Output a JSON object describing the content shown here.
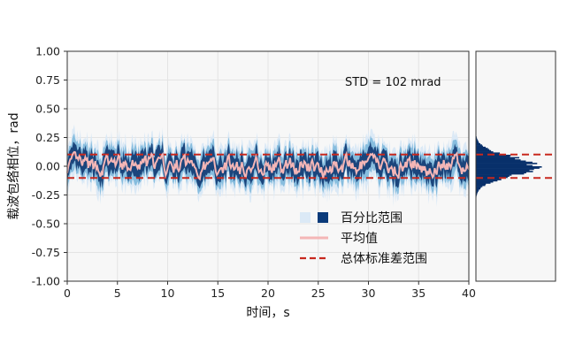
{
  "chart_data": {
    "type": "line",
    "main": {
      "xlabel": "时间，s",
      "ylabel": "载波包络相位，rad",
      "xlim": [
        0,
        40
      ],
      "ylim": [
        -1.0,
        1.0
      ],
      "xticks": [
        0,
        5,
        10,
        15,
        20,
        25,
        30,
        35,
        40
      ],
      "yticks": [
        1.0,
        0.75,
        0.5,
        0.25,
        0.0,
        -0.25,
        -0.5,
        -0.75,
        -1.0
      ],
      "ytick_labels": [
        "1.00",
        "0.75",
        "0.50",
        "0.25",
        "0.00",
        "-0.25",
        "-0.50",
        "-0.75",
        "-1.00"
      ],
      "grid": true,
      "annotation": "STD = 102 mrad",
      "std_band": [
        -0.102,
        0.102
      ],
      "mean_amplitude": 0.05,
      "percentile_band_outer": 0.22,
      "percentile_band_inner": 0.1
    },
    "histogram": {
      "orientation": "horizontal",
      "bins_center_range": [
        -0.3,
        0.3
      ],
      "peak_at": 0.0
    },
    "legend": {
      "placement": "lower-right",
      "entries": [
        {
          "label": "百分比范围",
          "color": "#0a3a7a"
        },
        {
          "label": "平均值",
          "color": "#f4b6b6"
        },
        {
          "label": "总体标准差范围",
          "color": "#c8281e"
        }
      ]
    },
    "colors": {
      "band_light": "#dbe9f6",
      "band_mid": "#6baed6",
      "band_dark": "#08306b",
      "mean": "#f4b6b6",
      "std": "#c8281e",
      "axes_bg": "#f7f7f7"
    }
  }
}
